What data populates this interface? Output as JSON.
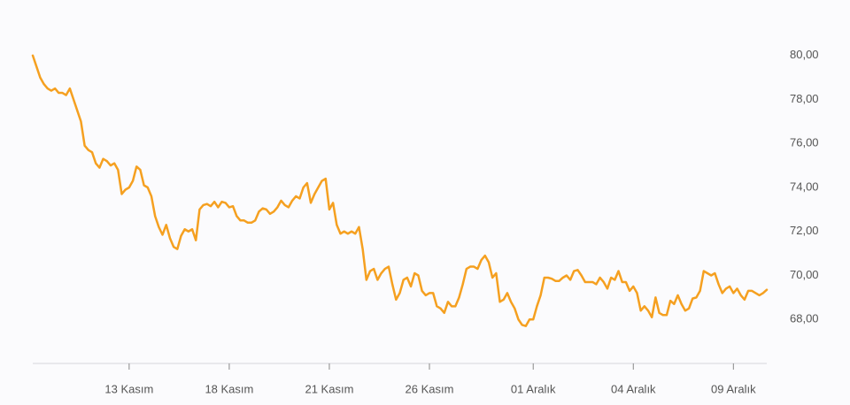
{
  "chart_data": {
    "type": "line",
    "color": "#f5a020",
    "ylim": [
      66,
      82
    ],
    "yticks": [
      {
        "value": 68,
        "label": "68,00"
      },
      {
        "value": 70,
        "label": "70,00"
      },
      {
        "value": 72,
        "label": "72,00"
      },
      {
        "value": 74,
        "label": "74,00"
      },
      {
        "value": 76,
        "label": "76,00"
      },
      {
        "value": 78,
        "label": "78,00"
      },
      {
        "value": 80,
        "label": "80,00"
      }
    ],
    "categories": [
      null,
      null,
      null,
      null,
      null,
      null,
      null,
      null,
      null,
      null,
      null,
      null,
      null,
      null,
      null,
      null,
      null,
      null,
      null,
      null,
      null,
      null,
      null,
      null,
      null,
      null,
      "13 Kasım",
      null,
      null,
      null,
      null,
      null,
      null,
      null,
      null,
      null,
      null,
      null,
      null,
      null,
      null,
      null,
      null,
      null,
      null,
      null,
      null,
      null,
      null,
      null,
      null,
      null,
      null,
      "18 Kasım",
      null,
      null,
      null,
      null,
      null,
      null,
      null,
      null,
      null,
      null,
      null,
      null,
      null,
      null,
      null,
      null,
      null,
      null,
      null,
      null,
      null,
      null,
      null,
      null,
      null,
      null,
      "21 Kasım",
      null,
      null,
      null,
      null,
      null,
      null,
      null,
      null,
      null,
      null,
      null,
      null,
      null,
      null,
      null,
      null,
      null,
      null,
      null,
      null,
      null,
      null,
      null,
      null,
      null,
      null,
      "26 Kasım",
      null,
      null,
      null,
      null,
      null,
      null,
      null,
      null,
      null,
      null,
      null,
      null,
      null,
      null,
      null,
      null,
      null,
      null,
      null,
      null,
      null,
      null,
      null,
      null,
      null,
      null,
      null,
      "01 Aralık",
      null,
      null,
      null,
      null,
      null,
      null,
      null,
      null,
      null,
      null,
      null,
      null,
      null,
      null,
      null,
      null,
      null,
      null,
      null,
      null,
      null,
      null,
      null,
      null,
      null,
      null,
      "04 Aralık",
      null,
      null,
      null,
      null,
      null,
      null,
      null,
      null,
      null,
      null,
      null,
      null,
      null,
      null,
      null,
      null,
      null,
      null,
      null,
      null,
      null,
      null,
      null,
      null,
      null,
      null,
      "09 Aralık",
      null,
      null,
      null,
      null,
      null,
      null,
      null,
      null,
      null
    ],
    "values": [
      80.0,
      79.5,
      79.0,
      78.7,
      78.5,
      78.4,
      78.5,
      78.3,
      78.3,
      78.2,
      78.5,
      78.0,
      77.5,
      77.0,
      75.9,
      75.7,
      75.6,
      75.1,
      74.9,
      75.3,
      75.2,
      75.0,
      75.1,
      74.8,
      73.7,
      73.9,
      74.0,
      74.3,
      74.95,
      74.8,
      74.1,
      74.0,
      73.6,
      72.7,
      72.2,
      71.85,
      72.3,
      71.7,
      71.3,
      71.2,
      71.8,
      72.1,
      72.0,
      72.1,
      71.6,
      73.0,
      73.2,
      73.25,
      73.15,
      73.35,
      73.1,
      73.35,
      73.3,
      73.1,
      73.15,
      72.7,
      72.5,
      72.5,
      72.4,
      72.4,
      72.5,
      72.9,
      73.05,
      73.0,
      72.8,
      72.9,
      73.1,
      73.4,
      73.2,
      73.1,
      73.4,
      73.6,
      73.5,
      74.0,
      74.2,
      73.3,
      73.7,
      74.0,
      74.3,
      74.4,
      73.0,
      73.3,
      72.3,
      71.9,
      72.0,
      71.9,
      72.0,
      71.9,
      72.2,
      71.2,
      69.8,
      70.2,
      70.3,
      69.8,
      70.1,
      70.3,
      70.4,
      69.6,
      68.9,
      69.2,
      69.8,
      69.9,
      69.5,
      70.1,
      70.0,
      69.3,
      69.1,
      69.2,
      69.2,
      68.6,
      68.5,
      68.3,
      68.8,
      68.6,
      68.6,
      69.0,
      69.6,
      70.3,
      70.4,
      70.4,
      70.3,
      70.7,
      70.9,
      70.6,
      69.9,
      70.1,
      68.8,
      68.9,
      69.2,
      68.8,
      68.5,
      68.0,
      67.75,
      67.7,
      68.0,
      68.0,
      68.6,
      69.1,
      69.9,
      69.9,
      69.85,
      69.75,
      69.75,
      69.9,
      70.0,
      69.8,
      70.2,
      70.25,
      70.0,
      69.7,
      69.7,
      69.7,
      69.6,
      69.9,
      69.7,
      69.4,
      69.9,
      69.8,
      70.2,
      69.7,
      69.7,
      69.3,
      69.5,
      69.2,
      68.4,
      68.6,
      68.4,
      68.1,
      69.0,
      68.3,
      68.2,
      68.2,
      68.85,
      68.7,
      69.1,
      68.7,
      68.4,
      68.5,
      68.95,
      69.0,
      69.3,
      70.2,
      70.1,
      70.0,
      70.1,
      69.6,
      69.2,
      69.4,
      69.5,
      69.2,
      69.4,
      69.1,
      68.9,
      69.3,
      69.3,
      69.2,
      69.1,
      69.2,
      69.35
    ]
  }
}
